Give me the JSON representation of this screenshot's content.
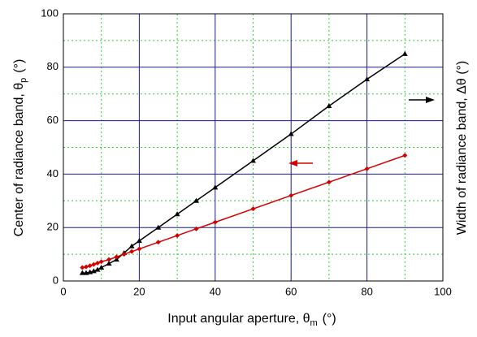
{
  "chart_data": {
    "type": "line",
    "xlabel": {
      "text": "Input angular aperture, θ",
      "sub": "m",
      "unit": "(°)"
    },
    "ylabel": {
      "text": "Center of radiance band, θ",
      "sub": "p",
      "unit": "(°)"
    },
    "y2label": "Width of radiance band, Δθ (°)",
    "x": [
      5,
      6,
      7,
      8,
      9,
      10,
      12,
      14,
      16,
      18,
      20,
      25,
      30,
      35,
      40,
      50,
      60,
      70,
      80,
      90
    ],
    "series": [
      {
        "color": "#000000",
        "marker": "triangle",
        "values": [
          3,
          3,
          3.3,
          3.7,
          4.2,
          5,
          6.5,
          8,
          10.5,
          13,
          15,
          20,
          25,
          30,
          35,
          45,
          55,
          65.5,
          75.5,
          85
        ]
      },
      {
        "color": "#d40000",
        "marker": "diamond",
        "values": [
          5,
          5.3,
          5.7,
          6.2,
          6.7,
          7.2,
          8,
          9,
          10,
          11,
          12,
          14.5,
          17,
          19.5,
          22,
          27,
          32,
          37,
          42,
          47
        ]
      }
    ],
    "xlim": [
      0,
      100
    ],
    "ylim": [
      0,
      100
    ],
    "xticks": [
      0,
      20,
      40,
      60,
      80,
      100
    ],
    "yticks": [
      0,
      20,
      40,
      60,
      80,
      100
    ],
    "xminor": [
      10,
      30,
      50,
      70,
      90
    ],
    "yminor": [
      10,
      30,
      50,
      70,
      90
    ],
    "grid": true
  }
}
